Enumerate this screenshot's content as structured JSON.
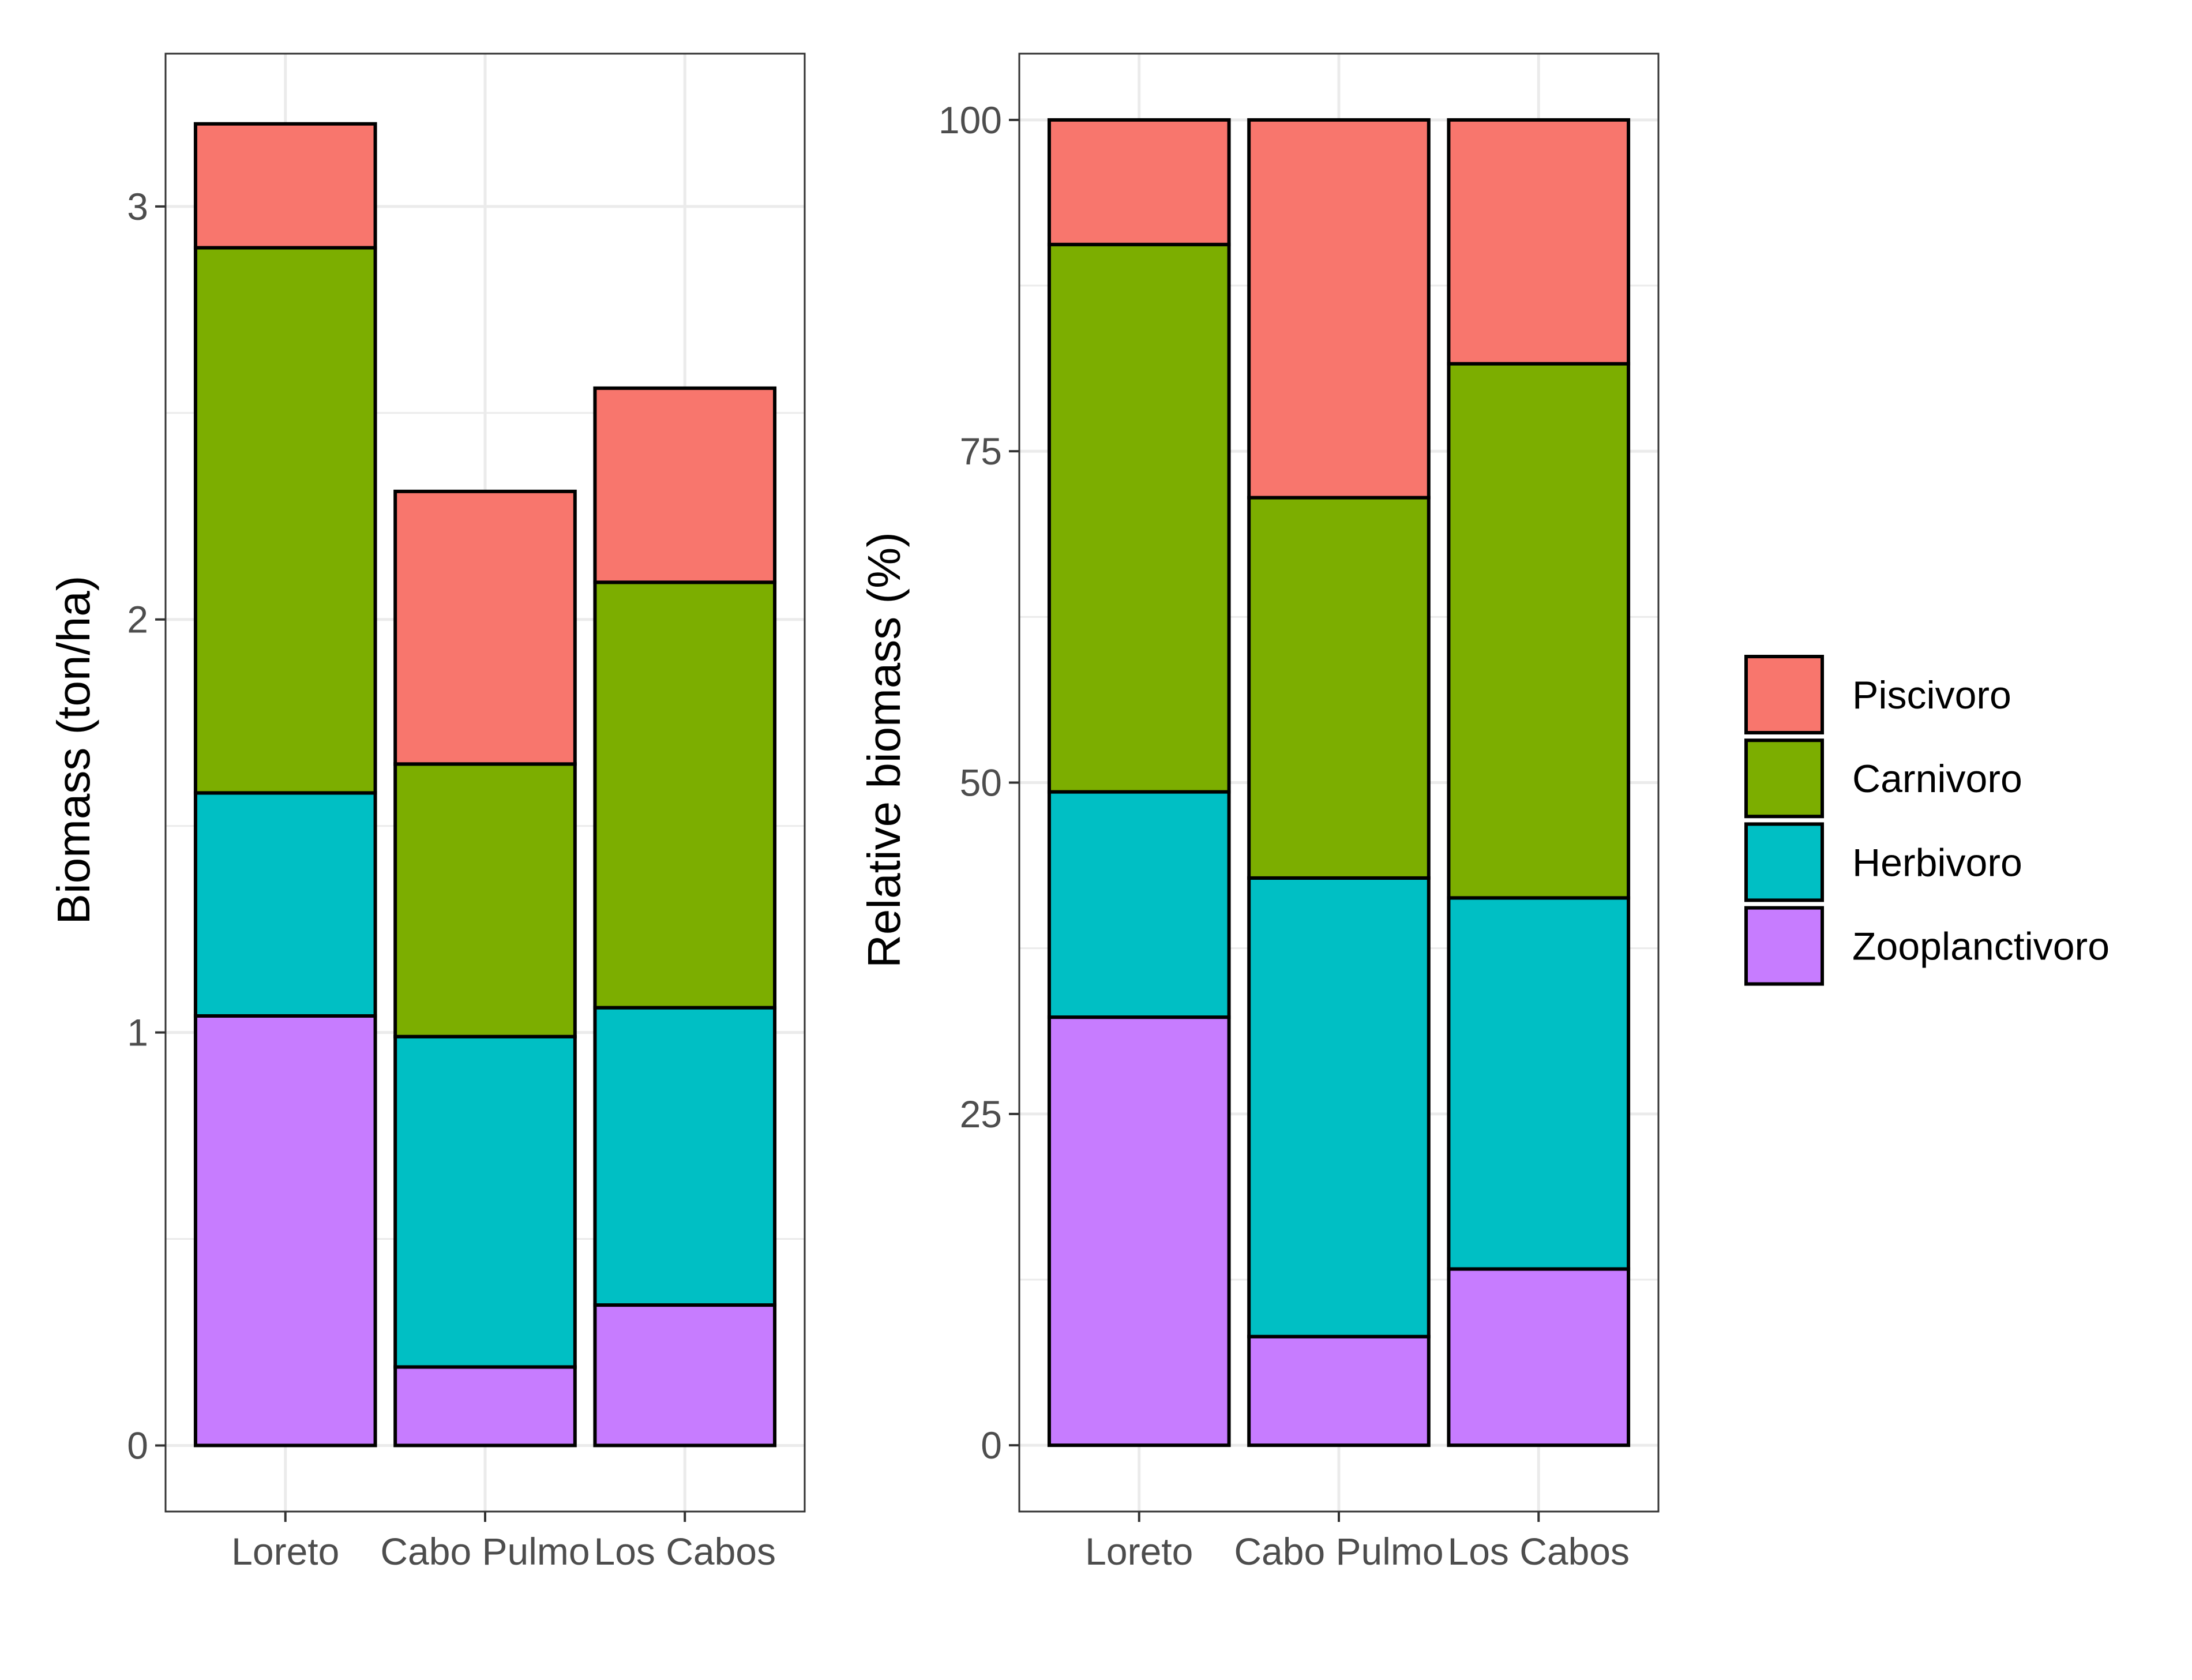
{
  "chart_data": [
    {
      "type": "bar",
      "stacked": true,
      "categories": [
        "Loreto",
        "Cabo Pulmo",
        "Los Cabos"
      ],
      "ylabel": "Biomass (ton/ha)",
      "xlabel": "",
      "ylim": [
        -0.16,
        3.37
      ],
      "yticks": [
        0,
        1,
        2,
        3
      ],
      "grid": true,
      "series": [
        {
          "name": "Zooplanctivoro",
          "values": [
            1.04,
            0.19,
            0.34
          ]
        },
        {
          "name": "Herbivoro",
          "values": [
            0.54,
            0.8,
            0.72
          ]
        },
        {
          "name": "Carnivoro",
          "values": [
            1.32,
            0.66,
            1.03
          ]
        },
        {
          "name": "Piscivoro",
          "values": [
            0.3,
            0.66,
            0.47
          ]
        }
      ]
    },
    {
      "type": "bar",
      "stacked": true,
      "categories": [
        "Loreto",
        "Cabo Pulmo",
        "Los Cabos"
      ],
      "ylabel": "Relative biomass (%)",
      "xlabel": "",
      "ylim": [
        -5,
        105
      ],
      "yticks": [
        0,
        25,
        50,
        75,
        100
      ],
      "grid": true,
      "series": [
        {
          "name": "Zooplanctivoro",
          "values": [
            32.3,
            8.2,
            13.3
          ]
        },
        {
          "name": "Herbivoro",
          "values": [
            17.0,
            34.6,
            28.0
          ]
        },
        {
          "name": "Carnivoro",
          "values": [
            41.3,
            28.7,
            40.3
          ]
        },
        {
          "name": "Piscivoro",
          "values": [
            9.4,
            28.5,
            18.4
          ]
        }
      ]
    }
  ],
  "legend": {
    "placement": "right",
    "items": [
      {
        "label": "Piscivoro",
        "color": "#F8766D"
      },
      {
        "label": "Carnivoro",
        "color": "#7CAE00"
      },
      {
        "label": "Herbivoro",
        "color": "#00BFC4"
      },
      {
        "label": "Zooplanctivoro",
        "color": "#C77CFF"
      }
    ]
  },
  "colors": {
    "Zooplanctivoro": "#C77CFF",
    "Herbivoro": "#00BFC4",
    "Carnivoro": "#7CAE00",
    "Piscivoro": "#F8766D"
  }
}
